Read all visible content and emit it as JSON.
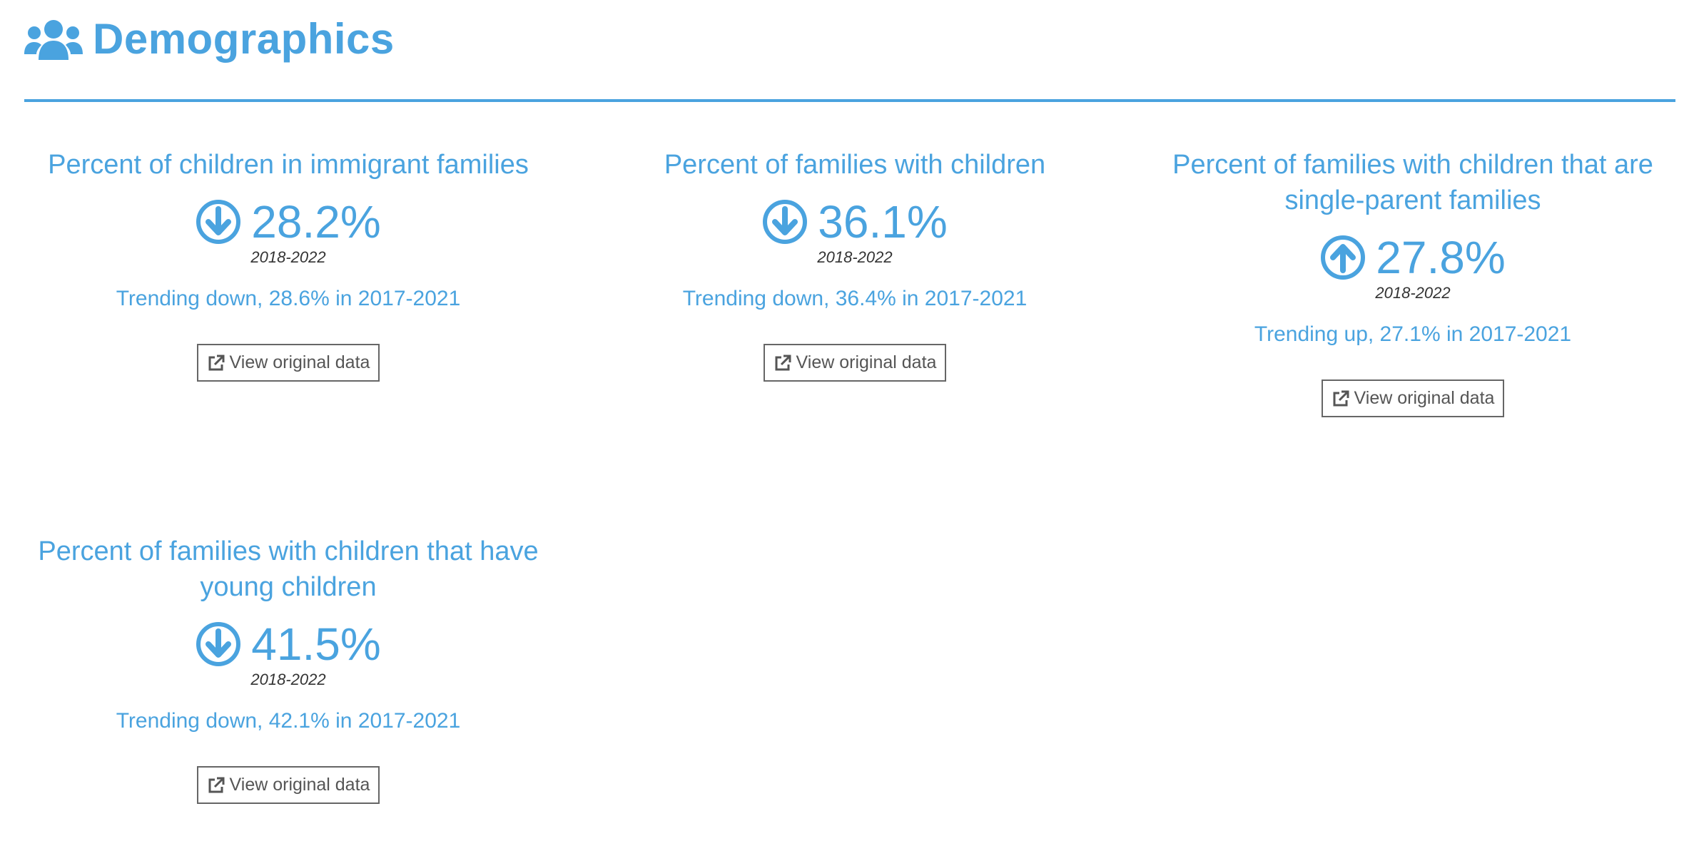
{
  "header": {
    "title": "Demographics",
    "icon": "users-icon"
  },
  "colors": {
    "accent": "#4aa3df",
    "period_text": "#333333",
    "button_text": "#555555",
    "button_border": "#666666"
  },
  "cards": [
    {
      "title": "Percent of children in immigrant families",
      "trend_icon": "arrow-down-circle-icon",
      "value": "28.2%",
      "period": "2018-2022",
      "trend_text": "Trending down, 28.6% in 2017-2021",
      "button_label": "View original data"
    },
    {
      "title": "Percent of families with children",
      "trend_icon": "arrow-down-circle-icon",
      "value": "36.1%",
      "period": "2018-2022",
      "trend_text": "Trending down, 36.4% in 2017-2021",
      "button_label": "View original data"
    },
    {
      "title": "Percent of families with children that are single-parent families",
      "trend_icon": "arrow-up-circle-icon",
      "value": "27.8%",
      "period": "2018-2022",
      "trend_text": "Trending up, 27.1% in 2017-2021",
      "button_label": "View original data"
    },
    {
      "title": "Percent of families with children that have young children",
      "trend_icon": "arrow-down-circle-icon",
      "value": "41.5%",
      "period": "2018-2022",
      "trend_text": "Trending down, 42.1% in 2017-2021",
      "button_label": "View original data"
    }
  ]
}
